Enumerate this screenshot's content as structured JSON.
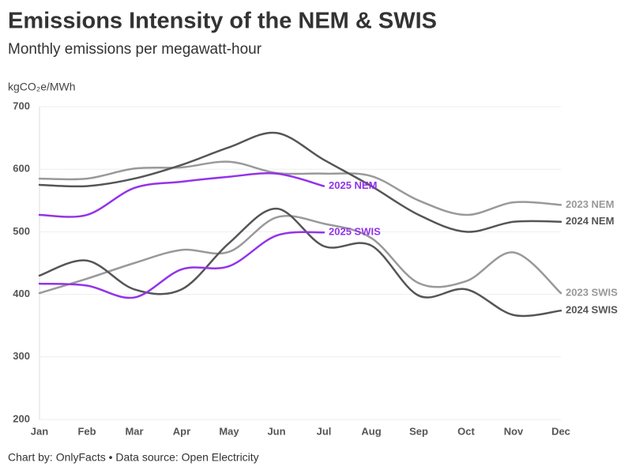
{
  "chart_data": {
    "type": "line",
    "title": "Emissions Intensity of the NEM & SWIS",
    "subtitle": "Monthly emissions per megawatt-hour",
    "y_label": "kgCO₂e/MWh",
    "footer": "Chart by: OnlyFacts • Data source: Open Electricity",
    "categories": [
      "Jan",
      "Feb",
      "Mar",
      "Apr",
      "May",
      "Jun",
      "Jul",
      "Aug",
      "Sep",
      "Oct",
      "Nov",
      "Dec"
    ],
    "ylim": [
      200,
      700
    ],
    "yticks": [
      200,
      300,
      400,
      500,
      600,
      700
    ],
    "grid": true,
    "series": [
      {
        "name": "2023 NEM",
        "color": "#999999",
        "values": [
          585,
          585,
          601,
          603,
          612,
          594,
          593,
          589,
          550,
          527,
          547,
          543
        ]
      },
      {
        "name": "2024 NEM",
        "color": "#555555",
        "values": [
          575,
          573,
          585,
          607,
          635,
          658,
          615,
          573,
          527,
          500,
          516,
          516
        ]
      },
      {
        "name": "2025 NEM",
        "color": "#9333ea",
        "values": [
          527,
          527,
          570,
          580,
          588,
          593,
          573,
          null,
          null,
          null,
          null,
          null
        ]
      },
      {
        "name": "2023 SWIS",
        "color": "#999999",
        "values": [
          402,
          425,
          450,
          471,
          468,
          523,
          513,
          490,
          418,
          421,
          467,
          402
        ]
      },
      {
        "name": "2024 SWIS",
        "color": "#555555",
        "values": [
          430,
          454,
          408,
          408,
          482,
          537,
          477,
          478,
          398,
          408,
          367,
          374
        ]
      },
      {
        "name": "2025 SWIS",
        "color": "#9333ea",
        "values": [
          417,
          414,
          395,
          440,
          445,
          494,
          499,
          null,
          null,
          null,
          null,
          null
        ]
      }
    ]
  }
}
